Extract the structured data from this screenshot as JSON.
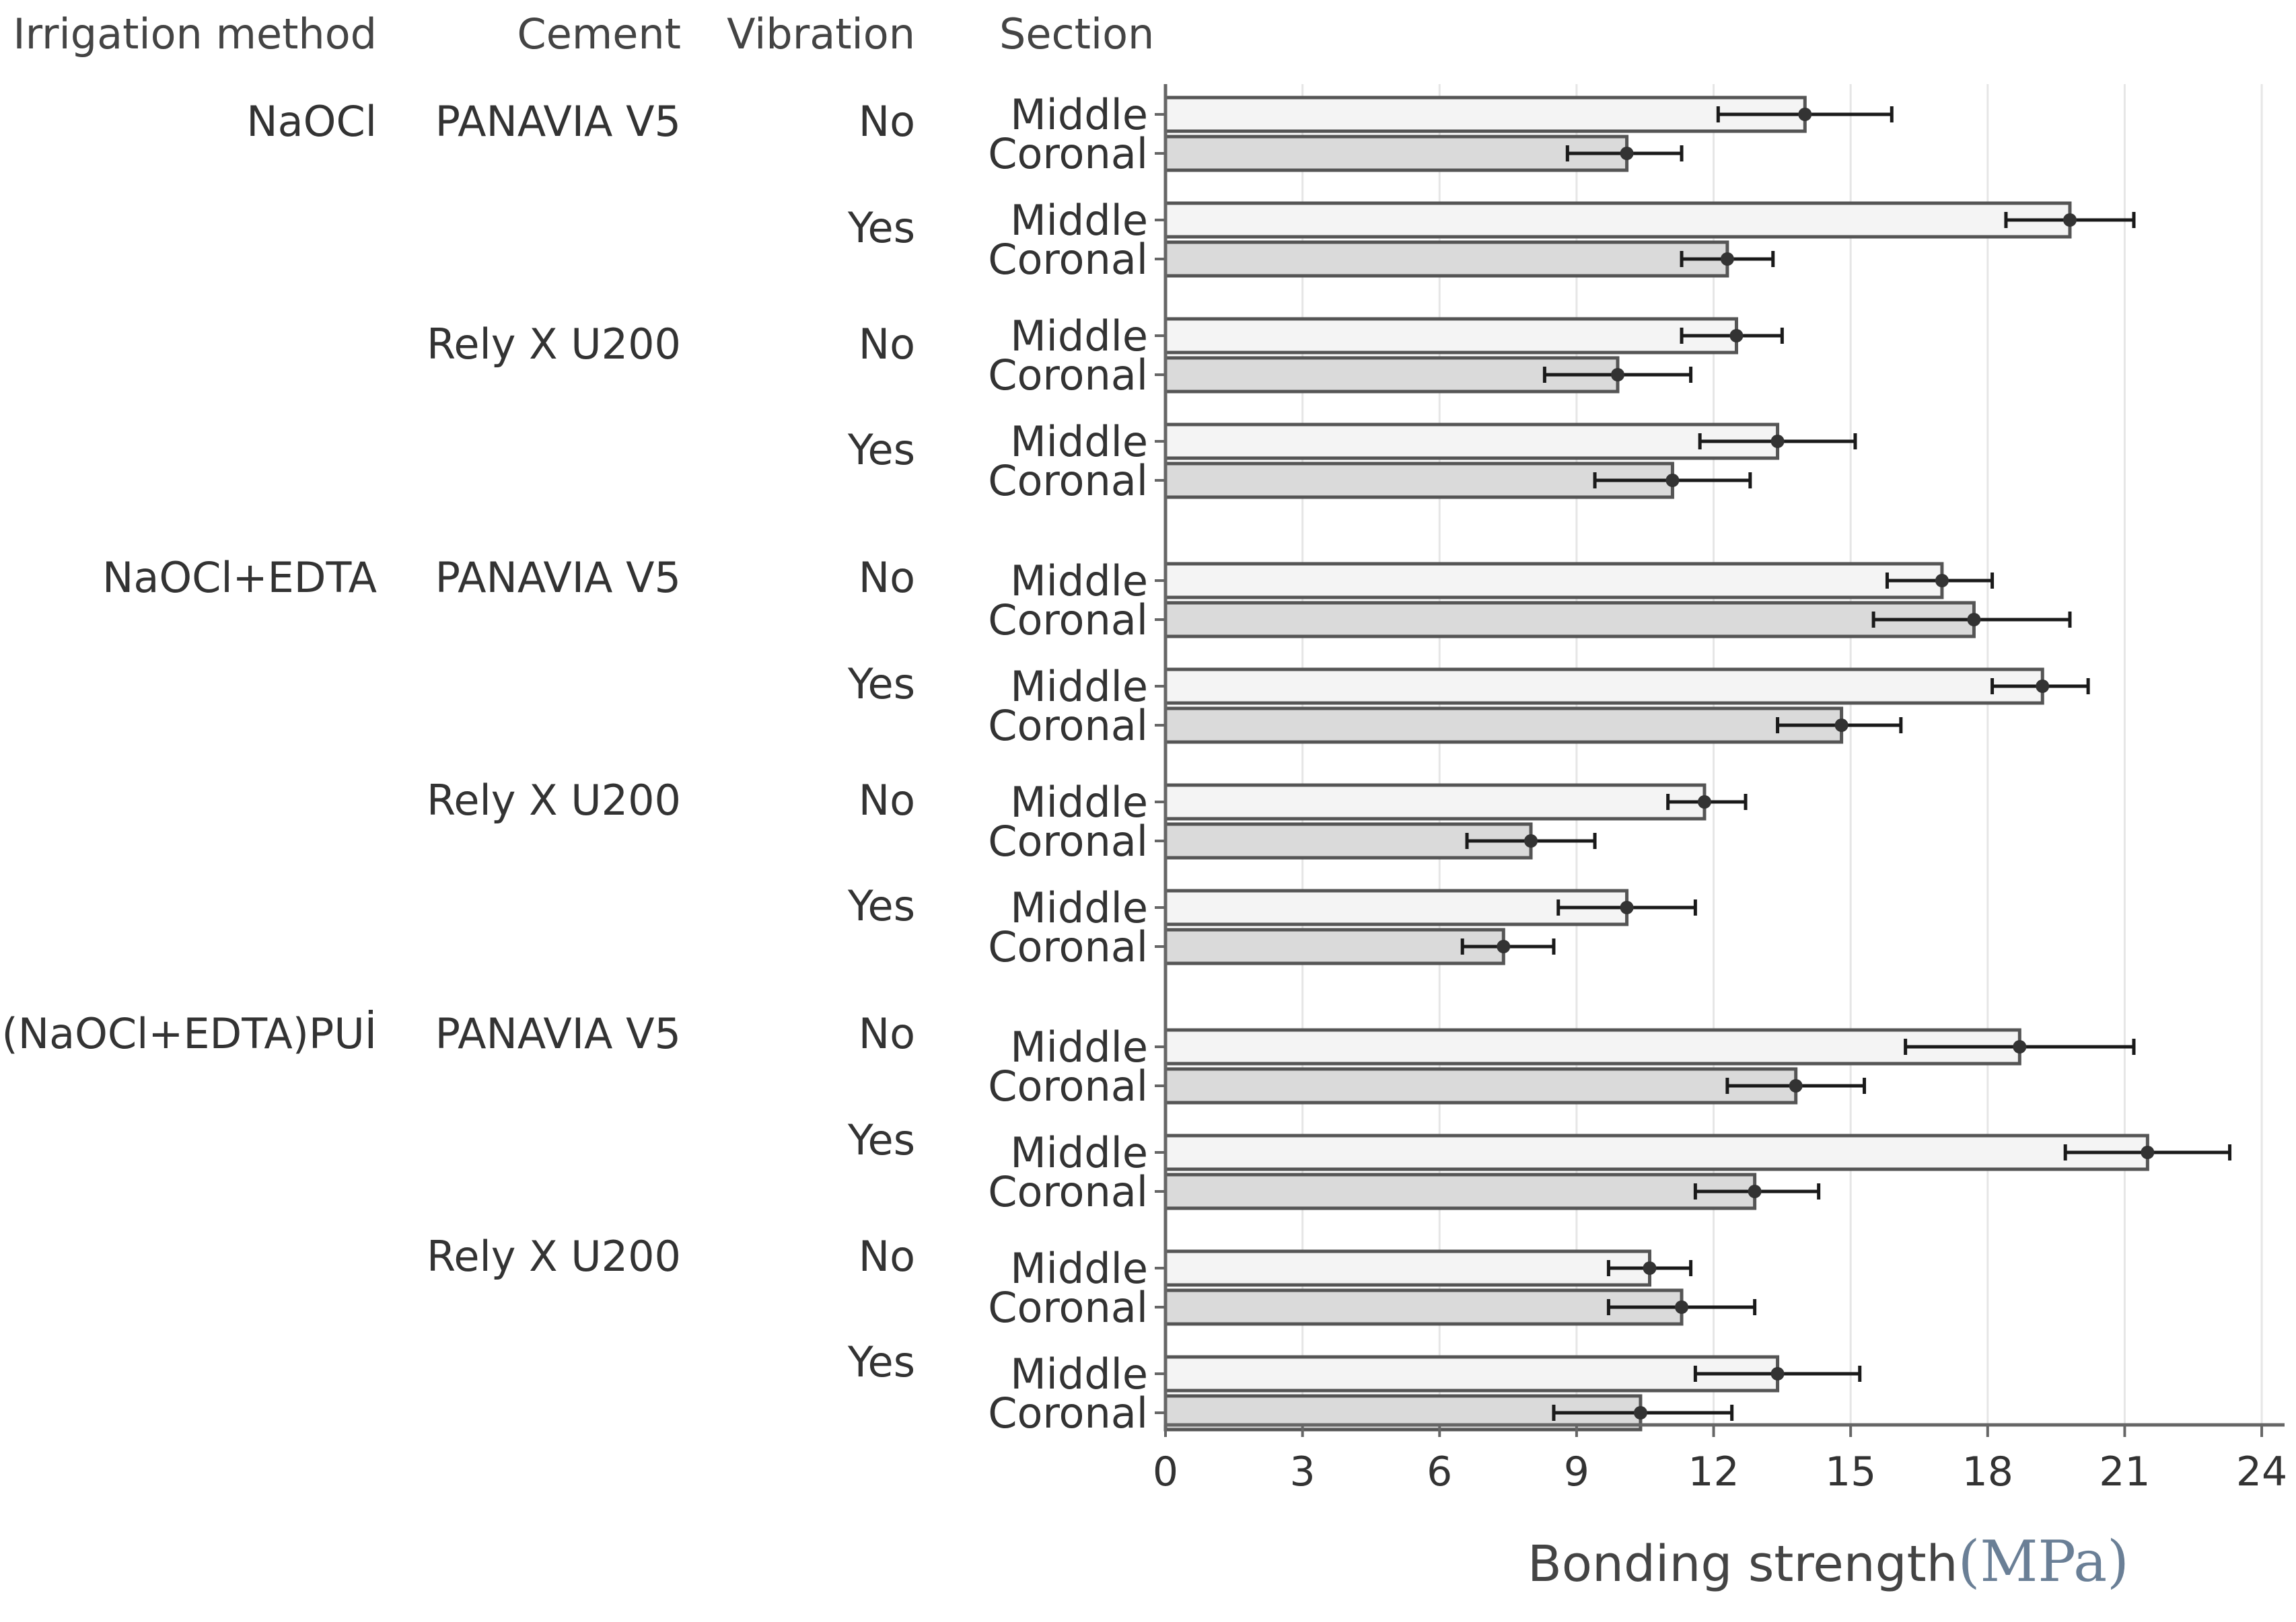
{
  "chart_data": {
    "type": "bar",
    "orientation": "horizontal",
    "xlabel": "Bonding strength",
    "xlabel_unit": "(MPa)",
    "xlim": [
      0,
      24.5
    ],
    "xticks": [
      0,
      3,
      6,
      9,
      12,
      15,
      18,
      21,
      24
    ],
    "grid": "vertical",
    "column_headers": {
      "irrigation": "Irrigation method",
      "cement": "Cement",
      "vibration": "Vibration",
      "section": "Section"
    },
    "irrigation_methods": [
      "NaOCl",
      "NaOCl+EDTA",
      "(NaOCl+EDTA)PUİ"
    ],
    "cements": [
      "PANAVIA V5",
      "Rely X U200"
    ],
    "vibrations": [
      "No",
      "Yes"
    ],
    "sections": [
      "Middle",
      "Coronal"
    ],
    "bars": [
      {
        "irrigation": "NaOCl",
        "cement": "PANAVIA V5",
        "vibration": "No",
        "section": "Middle",
        "value": 14.0,
        "err_low": 12.1,
        "err_high": 15.9
      },
      {
        "irrigation": "NaOCl",
        "cement": "PANAVIA V5",
        "vibration": "No",
        "section": "Coronal",
        "value": 10.1,
        "err_low": 8.8,
        "err_high": 11.3
      },
      {
        "irrigation": "NaOCl",
        "cement": "PANAVIA V5",
        "vibration": "Yes",
        "section": "Middle",
        "value": 19.8,
        "err_low": 18.4,
        "err_high": 21.2
      },
      {
        "irrigation": "NaOCl",
        "cement": "PANAVIA V5",
        "vibration": "Yes",
        "section": "Coronal",
        "value": 12.3,
        "err_low": 11.3,
        "err_high": 13.3
      },
      {
        "irrigation": "NaOCl",
        "cement": "Rely X U200",
        "vibration": "No",
        "section": "Middle",
        "value": 12.5,
        "err_low": 11.3,
        "err_high": 13.5
      },
      {
        "irrigation": "NaOCl",
        "cement": "Rely X U200",
        "vibration": "No",
        "section": "Coronal",
        "value": 9.9,
        "err_low": 8.3,
        "err_high": 11.5
      },
      {
        "irrigation": "NaOCl",
        "cement": "Rely X U200",
        "vibration": "Yes",
        "section": "Middle",
        "value": 13.4,
        "err_low": 11.7,
        "err_high": 15.1
      },
      {
        "irrigation": "NaOCl",
        "cement": "Rely X U200",
        "vibration": "Yes",
        "section": "Coronal",
        "value": 11.1,
        "err_low": 9.4,
        "err_high": 12.8
      },
      {
        "irrigation": "NaOCl+EDTA",
        "cement": "PANAVIA V5",
        "vibration": "No",
        "section": "Middle",
        "value": 17.0,
        "err_low": 15.8,
        "err_high": 18.1
      },
      {
        "irrigation": "NaOCl+EDTA",
        "cement": "PANAVIA V5",
        "vibration": "No",
        "section": "Coronal",
        "value": 17.7,
        "err_low": 15.5,
        "err_high": 19.8
      },
      {
        "irrigation": "NaOCl+EDTA",
        "cement": "PANAVIA V5",
        "vibration": "Yes",
        "section": "Middle",
        "value": 19.2,
        "err_low": 18.1,
        "err_high": 20.2
      },
      {
        "irrigation": "NaOCl+EDTA",
        "cement": "PANAVIA V5",
        "vibration": "Yes",
        "section": "Coronal",
        "value": 14.8,
        "err_low": 13.4,
        "err_high": 16.1
      },
      {
        "irrigation": "NaOCl+EDTA",
        "cement": "Rely X U200",
        "vibration": "No",
        "section": "Middle",
        "value": 11.8,
        "err_low": 11.0,
        "err_high": 12.7
      },
      {
        "irrigation": "NaOCl+EDTA",
        "cement": "Rely X U200",
        "vibration": "No",
        "section": "Coronal",
        "value": 8.0,
        "err_low": 6.6,
        "err_high": 9.4
      },
      {
        "irrigation": "NaOCl+EDTA",
        "cement": "Rely X U200",
        "vibration": "Yes",
        "section": "Middle",
        "value": 10.1,
        "err_low": 8.6,
        "err_high": 11.6
      },
      {
        "irrigation": "NaOCl+EDTA",
        "cement": "Rely X U200",
        "vibration": "Yes",
        "section": "Coronal",
        "value": 7.4,
        "err_low": 6.5,
        "err_high": 8.5
      },
      {
        "irrigation": "(NaOCl+EDTA)PUİ",
        "cement": "PANAVIA V5",
        "vibration": "No",
        "section": "Middle",
        "value": 18.7,
        "err_low": 16.2,
        "err_high": 21.2
      },
      {
        "irrigation": "(NaOCl+EDTA)PUİ",
        "cement": "PANAVIA V5",
        "vibration": "No",
        "section": "Coronal",
        "value": 13.8,
        "err_low": 12.3,
        "err_high": 15.3
      },
      {
        "irrigation": "(NaOCl+EDTA)PUİ",
        "cement": "PANAVIA V5",
        "vibration": "Yes",
        "section": "Middle",
        "value": 21.5,
        "err_low": 19.7,
        "err_high": 23.3
      },
      {
        "irrigation": "(NaOCl+EDTA)PUİ",
        "cement": "PANAVIA V5",
        "vibration": "Yes",
        "section": "Coronal",
        "value": 12.9,
        "err_low": 11.6,
        "err_high": 14.3
      },
      {
        "irrigation": "(NaOCl+EDTA)PUİ",
        "cement": "Rely X U200",
        "vibration": "No",
        "section": "Middle",
        "value": 10.6,
        "err_low": 9.7,
        "err_high": 11.5
      },
      {
        "irrigation": "(NaOCl+EDTA)PUİ",
        "cement": "Rely X U200",
        "vibration": "No",
        "section": "Coronal",
        "value": 11.3,
        "err_low": 9.7,
        "err_high": 12.9
      },
      {
        "irrigation": "(NaOCl+EDTA)PUİ",
        "cement": "Rely X U200",
        "vibration": "Yes",
        "section": "Middle",
        "value": 13.4,
        "err_low": 11.6,
        "err_high": 15.2
      },
      {
        "irrigation": "(NaOCl+EDTA)PUİ",
        "cement": "Rely X U200",
        "vibration": "Yes",
        "section": "Coronal",
        "value": 10.4,
        "err_low": 8.5,
        "err_high": 12.4
      }
    ],
    "colors": {
      "middle_fill": "#f4f4f4",
      "coronal_fill": "#dadada",
      "bar_stroke": "#555555",
      "errorbar": "#1a1a1a",
      "grid": "#e6e6e6",
      "axis": "#666666"
    }
  }
}
